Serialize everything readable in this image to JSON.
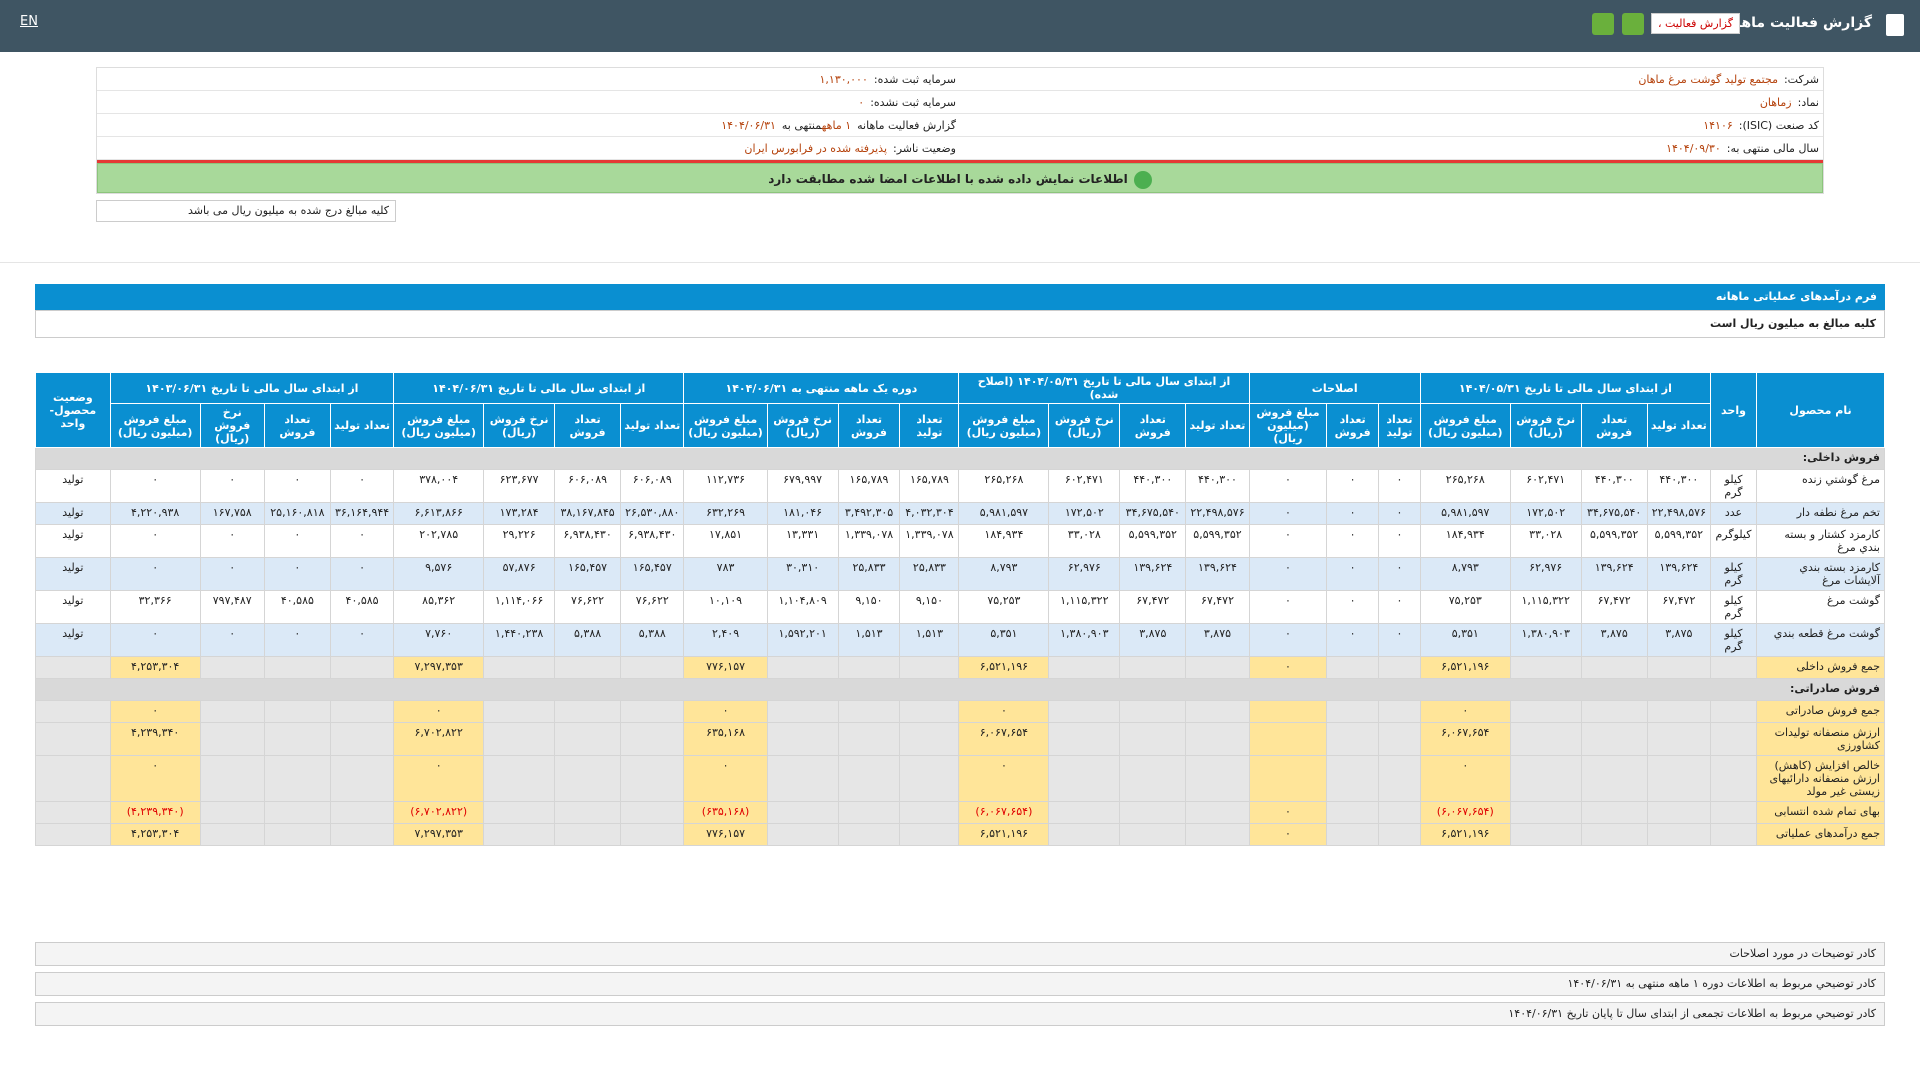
{
  "header": {
    "title": "گزارش فعالیت ماهانه",
    "dropdown": "گزارش فعالیت ،",
    "lang": "EN"
  },
  "info": {
    "rows": [
      [
        {
          "label": "شرکت:",
          "value": "مجتمع تولید گوشت مرغ ماهان"
        },
        {
          "label": "سرمایه ثبت شده:",
          "value": "۱,۱۳۰,۰۰۰"
        }
      ],
      [
        {
          "label": "نماد:",
          "value": "زماهان"
        },
        {
          "label": "سرمایه ثبت نشده:",
          "value": "۰"
        }
      ],
      [
        {
          "label": "کد صنعت (ISIC):",
          "value": "۱۴۱۰۶"
        },
        {
          "label": "گزارش فعالیت ماهانه",
          "value": "۱ ماهه",
          "label2": "منتهی به",
          "value2": "۱۴۰۴/۰۶/۳۱"
        }
      ],
      [
        {
          "label": "سال مالی منتهی به:",
          "value": "۱۴۰۴/۰۹/۳۰"
        },
        {
          "label": "وضعیت ناشر:",
          "value": "پذیرفته شده در فرابورس ایران"
        }
      ]
    ],
    "notice": "اطلاعات نمایش داده شده با اطلاعات امضا شده مطابقت دارد",
    "unit_note": "کلیه مبالغ درج شده به میلیون ریال می باشد"
  },
  "form": {
    "title": "فرم درآمدهای عملیاتی ماهانه",
    "note": "کلیه مبالغ به میلیون ریال است",
    "table": {
      "head_first": [
        "نام محصول",
        "واحد"
      ],
      "head_last": "وضعیت محصول- واحد",
      "groups": [
        {
          "title": "از ابتدای سال مالی تا تاریخ ۱۴۰۴/۰۵/۳۱",
          "columns": [
            "تعداد تولید",
            "تعداد فروش",
            "نرخ فروش (ریال)",
            "مبلغ فروش (میلیون ریال)"
          ]
        },
        {
          "title": "اصلاحات",
          "columns": [
            "تعداد تولید",
            "تعداد فروش",
            "مبلغ فروش (میلیون ریال)"
          ]
        },
        {
          "title": "از ابتدای سال مالی تا تاریخ ۱۴۰۴/۰۵/۳۱ (اصلاح شده)",
          "columns": [
            "تعداد تولید",
            "تعداد فروش",
            "نرخ فروش (ریال)",
            "مبلغ فروش (میلیون ریال)"
          ]
        },
        {
          "title": "دوره یک ماهه منتهی به ۱۴۰۴/۰۶/۳۱",
          "columns": [
            "تعداد تولید",
            "تعداد فروش",
            "نرخ فروش (ریال)",
            "مبلغ فروش (میلیون ریال)"
          ]
        },
        {
          "title": "از ابتدای سال مالی تا تاریخ ۱۴۰۴/۰۶/۳۱",
          "columns": [
            "تعداد تولید",
            "تعداد فروش",
            "نرخ فروش (ریال)",
            "مبلغ فروش (میلیون ریال)"
          ]
        },
        {
          "title": "از ابتدای سال مالی تا تاریخ ۱۴۰۳/۰۶/۳۱",
          "columns": [
            "تعداد تولید",
            "تعداد فروش",
            "نرخ فروش (ریال)",
            "مبلغ فروش (میلیون ریال)"
          ]
        }
      ],
      "rows": [
        [
          "فروش داخلی:",
          null,
          null,
          null,
          null,
          null,
          null,
          null,
          null,
          null,
          null,
          null,
          null,
          null,
          null,
          null,
          null,
          null,
          null,
          null,
          null,
          null,
          null,
          null,
          null,
          null
        ],
        [
          "مرغ گوشتي زنده",
          "کیلو گرم",
          "۴۴۰,۳۰۰",
          "۴۴۰,۳۰۰",
          "۶۰۲,۴۷۱",
          "۲۶۵,۲۶۸",
          "۰",
          "۰",
          "۰",
          "۴۴۰,۳۰۰",
          "۴۴۰,۳۰۰",
          "۶۰۲,۴۷۱",
          "۲۶۵,۲۶۸",
          "۱۶۵,۷۸۹",
          "۱۶۵,۷۸۹",
          "۶۷۹,۹۹۷",
          "۱۱۲,۷۳۶",
          "۶۰۶,۰۸۹",
          "۶۰۶,۰۸۹",
          "۶۲۳,۶۷۷",
          "۳۷۸,۰۰۴",
          "۰",
          "۰",
          "۰",
          "۰",
          "تولید"
        ],
        [
          "تخم مرغ نطفه دار",
          "عدد",
          "۲۲,۴۹۸,۵۷۶",
          "۳۴,۶۷۵,۵۴۰",
          "۱۷۲,۵۰۲",
          "۵,۹۸۱,۵۹۷",
          "۰",
          "۰",
          "۰",
          "۲۲,۴۹۸,۵۷۶",
          "۳۴,۶۷۵,۵۴۰",
          "۱۷۲,۵۰۲",
          "۵,۹۸۱,۵۹۷",
          "۴,۰۳۲,۳۰۴",
          "۳,۴۹۲,۳۰۵",
          "۱۸۱,۰۴۶",
          "۶۳۲,۲۶۹",
          "۲۶,۵۳۰,۸۸۰",
          "۳۸,۱۶۷,۸۴۵",
          "۱۷۳,۲۸۴",
          "۶,۶۱۳,۸۶۶",
          "۳۶,۱۶۴,۹۴۴",
          "۲۵,۱۶۰,۸۱۸",
          "۱۶۷,۷۵۸",
          "۴,۲۲۰,۹۳۸",
          "تولید"
        ],
        [
          "کارمزد کشتار و بسته بندي مرغ",
          "کیلوگرم",
          "۵,۵۹۹,۳۵۲",
          "۵,۵۹۹,۳۵۲",
          "۳۳,۰۲۸",
          "۱۸۴,۹۳۴",
          "۰",
          "۰",
          "۰",
          "۵,۵۹۹,۳۵۲",
          "۵,۵۹۹,۳۵۲",
          "۳۳,۰۲۸",
          "۱۸۴,۹۳۴",
          "۱,۳۳۹,۰۷۸",
          "۱,۳۳۹,۰۷۸",
          "۱۳,۳۳۱",
          "۱۷,۸۵۱",
          "۶,۹۳۸,۴۳۰",
          "۶,۹۳۸,۴۳۰",
          "۲۹,۲۲۶",
          "۲۰۲,۷۸۵",
          "۰",
          "۰",
          "۰",
          "۰",
          "تولید"
        ],
        [
          "کارمزد بسته بندي آلايشات مرغ",
          "کیلو گرم",
          "۱۳۹,۶۲۴",
          "۱۳۹,۶۲۴",
          "۶۲,۹۷۶",
          "۸,۷۹۳",
          "۰",
          "۰",
          "۰",
          "۱۳۹,۶۲۴",
          "۱۳۹,۶۲۴",
          "۶۲,۹۷۶",
          "۸,۷۹۳",
          "۲۵,۸۳۳",
          "۲۵,۸۳۳",
          "۳۰,۳۱۰",
          "۷۸۳",
          "۱۶۵,۴۵۷",
          "۱۶۵,۴۵۷",
          "۵۷,۸۷۶",
          "۹,۵۷۶",
          "۰",
          "۰",
          "۰",
          "۰",
          "تولید"
        ],
        [
          "گوشت مرغ",
          "کیلو گرم",
          "۶۷,۴۷۲",
          "۶۷,۴۷۲",
          "۱,۱۱۵,۳۲۲",
          "۷۵,۲۵۳",
          "۰",
          "۰",
          "۰",
          "۶۷,۴۷۲",
          "۶۷,۴۷۲",
          "۱,۱۱۵,۳۲۲",
          "۷۵,۲۵۳",
          "۹,۱۵۰",
          "۹,۱۵۰",
          "۱,۱۰۴,۸۰۹",
          "۱۰,۱۰۹",
          "۷۶,۶۲۲",
          "۷۶,۶۲۲",
          "۱,۱۱۴,۰۶۶",
          "۸۵,۳۶۲",
          "۴۰,۵۸۵",
          "۴۰,۵۸۵",
          "۷۹۷,۴۸۷",
          "۳۲,۳۶۶",
          "تولید"
        ],
        [
          "گوشت مرغ قطعه بندي",
          "کیلو گرم",
          "۳,۸۷۵",
          "۳,۸۷۵",
          "۱,۳۸۰,۹۰۳",
          "۵,۳۵۱",
          "۰",
          "۰",
          "۰",
          "۳,۸۷۵",
          "۳,۸۷۵",
          "۱,۳۸۰,۹۰۳",
          "۵,۳۵۱",
          "۱,۵۱۳",
          "۱,۵۱۳",
          "۱,۵۹۲,۲۰۱",
          "۲,۴۰۹",
          "۵,۳۸۸",
          "۵,۳۸۸",
          "۱,۴۴۰,۲۳۸",
          "۷,۷۶۰",
          "۰",
          "۰",
          "۰",
          "۰",
          "تولید"
        ],
        [
          "جمع فروش داخلی",
          null,
          null,
          null,
          null,
          "۶,۵۲۱,۱۹۶",
          null,
          null,
          "۰",
          null,
          null,
          null,
          "۶,۵۲۱,۱۹۶",
          null,
          null,
          null,
          "۷۷۶,۱۵۷",
          null,
          null,
          null,
          "۷,۲۹۷,۳۵۳",
          null,
          null,
          null,
          "۴,۲۵۳,۳۰۴",
          null
        ],
        [
          "فروش صادراتی:",
          null,
          null,
          null,
          null,
          null,
          null,
          null,
          null,
          null,
          null,
          null,
          null,
          null,
          null,
          null,
          null,
          null,
          null,
          null,
          null,
          null,
          null,
          null,
          null,
          null
        ],
        [
          "جمع فروش صادراتی",
          null,
          null,
          null,
          null,
          "۰",
          null,
          null,
          null,
          null,
          null,
          null,
          "۰",
          null,
          null,
          null,
          "۰",
          null,
          null,
          null,
          "۰",
          null,
          null,
          null,
          "۰",
          null
        ],
        [
          "ارزش منصفانه تولیدات کشاورزی",
          null,
          null,
          null,
          null,
          "۶,۰۶۷,۶۵۴",
          null,
          null,
          null,
          null,
          null,
          null,
          "۶,۰۶۷,۶۵۴",
          null,
          null,
          null,
          "۶۳۵,۱۶۸",
          null,
          null,
          null,
          "۶,۷۰۲,۸۲۲",
          null,
          null,
          null,
          "۴,۲۳۹,۳۴۰",
          null
        ],
        [
          "خالص افزایش (کاهش) ارزش منصفانه دارائیهای زیستی غیر مولد",
          null,
          null,
          null,
          null,
          "۰",
          null,
          null,
          null,
          null,
          null,
          null,
          "۰",
          null,
          null,
          null,
          "۰",
          null,
          null,
          null,
          "۰",
          null,
          null,
          null,
          "۰",
          null
        ],
        [
          "بهای تمام شده انتسابی",
          null,
          null,
          null,
          null,
          "(۶,۰۶۷,۶۵۴)",
          null,
          null,
          "۰",
          null,
          null,
          null,
          "(۶,۰۶۷,۶۵۴)",
          null,
          null,
          null,
          "(۶۳۵,۱۶۸)",
          null,
          null,
          null,
          "(۶,۷۰۲,۸۲۲)",
          null,
          null,
          null,
          "(۴,۲۳۹,۳۴۰)",
          null
        ],
        [
          "جمع درآمدهای عملیاتی",
          null,
          null,
          null,
          null,
          "۶,۵۲۱,۱۹۶",
          null,
          null,
          "۰",
          null,
          null,
          null,
          "۶,۵۲۱,۱۹۶",
          null,
          null,
          null,
          "۷۷۶,۱۵۷",
          null,
          null,
          null,
          "۷,۲۹۷,۳۵۳",
          null,
          null,
          null,
          "۴,۲۵۳,۳۰۴",
          null
        ]
      ]
    }
  },
  "notes": [
    "کادر توضیحات در مورد اصلاحات",
    "کادر توضیحي مربوط به اطلاعات دوره ۱ ماهه منتهی به ۱۴۰۴/۰۶/۳۱",
    "کادر توضیحي مربوط به اطلاعات تجمعی از ابتدای سال تا پایان تاریخ ۱۴۰۴/۰۶/۳۱"
  ]
}
